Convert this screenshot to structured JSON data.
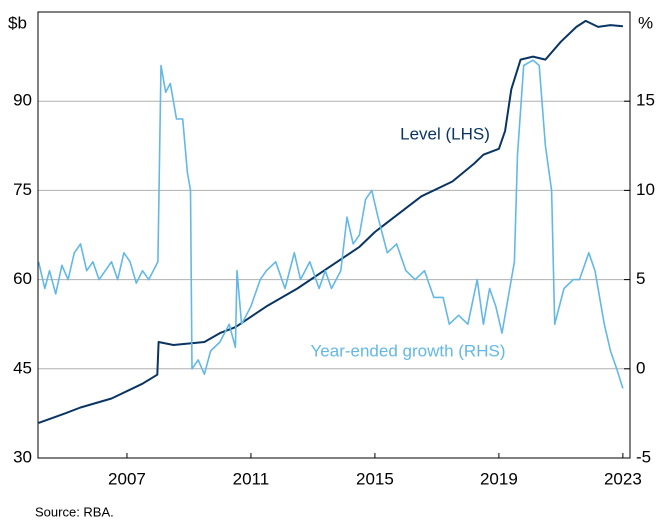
{
  "chart_data": {
    "type": "line",
    "ylabel": "$b",
    "y2label": "%",
    "xlim": [
      2004.63,
      2023.73
    ],
    "xticks": [
      {
        "value": 2007.5,
        "label": "2007"
      },
      {
        "value": 2011.5,
        "label": "2011"
      },
      {
        "value": 2015.5,
        "label": "2015"
      },
      {
        "value": 2019.5,
        "label": "2019"
      },
      {
        "value": 2023.5,
        "label": "2023"
      }
    ],
    "ylim": [
      30,
      105
    ],
    "yticks": [
      30,
      45,
      60,
      75,
      90
    ],
    "y2lim": [
      -5,
      20
    ],
    "y2ticks": [
      -5,
      0,
      5,
      10,
      15
    ],
    "grid": true,
    "series": [
      {
        "name": "Level (LHS)",
        "color": "#0a3563",
        "axis": "y",
        "x": [
          2004.65,
          2005.5,
          2006,
          2007,
          2008,
          2008.48,
          2008.52,
          2009,
          2010,
          2010.5,
          2011,
          2012,
          2013,
          2014,
          2015,
          2015.5,
          2016,
          2017,
          2018,
          2018.7,
          2019,
          2019.5,
          2019.7,
          2019.9,
          2020.2,
          2020.6,
          2021,
          2021.5,
          2022,
          2022.3,
          2022.7,
          2023.1,
          2023.5
        ],
        "values": [
          35.9,
          37.5,
          38.5,
          40,
          42.5,
          44,
          49.5,
          49,
          49.5,
          51,
          52,
          55.5,
          58.5,
          62,
          65.5,
          68,
          70,
          74,
          76.5,
          79.5,
          81,
          82,
          85,
          92,
          97,
          97.5,
          97,
          100,
          102.5,
          103.5,
          102.5,
          102.8,
          102.6
        ]
      },
      {
        "name": "Year-ended growth (RHS)",
        "color": "#63b8e6",
        "axis": "y2",
        "x": [
          2004.65,
          2004.85,
          2005,
          2005.2,
          2005.4,
          2005.6,
          2005.8,
          2006,
          2006.2,
          2006.4,
          2006.6,
          2006.8,
          2007,
          2007.2,
          2007.4,
          2007.6,
          2007.8,
          2008,
          2008.2,
          2008.5,
          2008.6,
          2008.75,
          2008.9,
          2009.1,
          2009.3,
          2009.45,
          2009.55,
          2009.6,
          2009.8,
          2010,
          2010.2,
          2010.5,
          2010.8,
          2011,
          2011.05,
          2011.2,
          2011.5,
          2011.8,
          2012,
          2012.3,
          2012.6,
          2012.9,
          2013.1,
          2013.4,
          2013.7,
          2013.9,
          2014.1,
          2014.4,
          2014.6,
          2014.8,
          2015,
          2015.2,
          2015.4,
          2015.6,
          2015.9,
          2016.2,
          2016.5,
          2016.8,
          2017.1,
          2017.4,
          2017.7,
          2017.9,
          2018.2,
          2018.5,
          2018.8,
          2019,
          2019.2,
          2019.4,
          2019.6,
          2019.8,
          2020,
          2020.1,
          2020.3,
          2020.6,
          2020.8,
          2021,
          2021.2,
          2021.3,
          2021.6,
          2021.9,
          2022.1,
          2022.4,
          2022.6,
          2022.9,
          2023.1,
          2023.3,
          2023.5
        ],
        "values": [
          6,
          4.5,
          5.5,
          4.2,
          5.8,
          5,
          6.5,
          7,
          5.5,
          6,
          5,
          5.5,
          6,
          5,
          6.5,
          6,
          4.8,
          5.5,
          5,
          6,
          17,
          15.5,
          16,
          14,
          14,
          11,
          10,
          0,
          0.5,
          -0.3,
          1,
          1.5,
          2.5,
          1.2,
          5.5,
          2.5,
          3.5,
          5,
          5.5,
          6,
          4.5,
          6.5,
          5,
          6,
          4.5,
          5.5,
          4.5,
          5.5,
          8.5,
          7,
          7.5,
          9.5,
          10,
          8.5,
          6.5,
          7,
          5.5,
          5,
          5.5,
          4,
          4,
          2.5,
          3,
          2.5,
          5,
          2.5,
          4.5,
          3.5,
          2,
          4,
          6,
          12,
          17,
          17.3,
          17,
          12.5,
          10,
          2.5,
          4.5,
          5,
          5,
          6.5,
          5.5,
          2.5,
          1,
          0,
          -1.1
        ]
      }
    ],
    "source": "Source:   RBA."
  }
}
